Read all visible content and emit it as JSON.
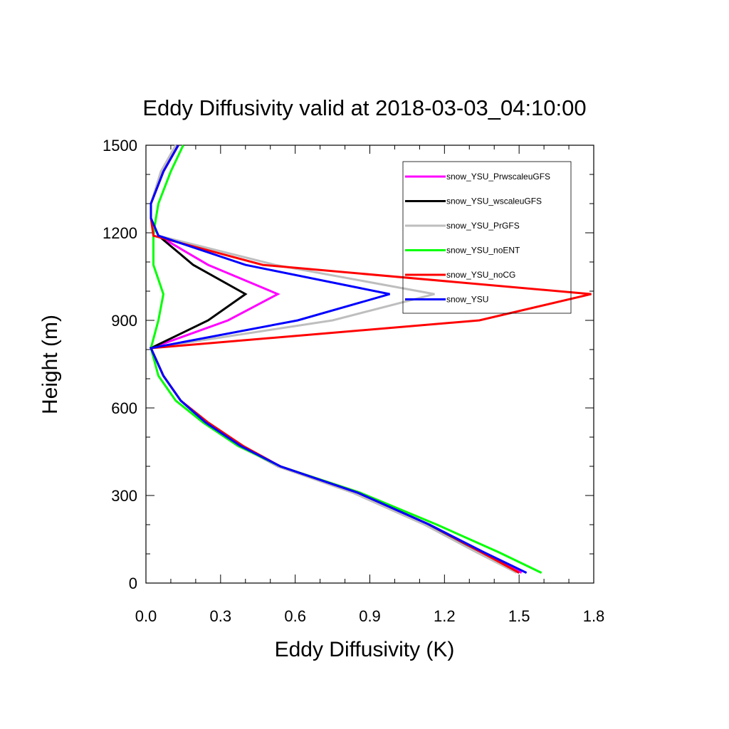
{
  "chart_data": {
    "type": "line",
    "title": "Eddy Diffusivity valid at 2018-03-03_04:10:00",
    "xlabel": "Eddy Diffusivity (K)",
    "ylabel": "Height (m)",
    "xlim": [
      0,
      1.8
    ],
    "ylim": [
      0,
      1500
    ],
    "x_ticks": [
      "0.0",
      "0.3",
      "0.6",
      "0.9",
      "1.2",
      "1.5",
      "1.8"
    ],
    "y_ticks": [
      "0",
      "300",
      "600",
      "900",
      "1200",
      "1500"
    ],
    "grid": false,
    "legend_position": "top-right",
    "series": [
      {
        "name": "snow_YSU_PrwscaleuGFS",
        "color": "#ff00ff",
        "points": [
          [
            1.51,
            35
          ],
          [
            1.35,
            105
          ],
          [
            1.13,
            200
          ],
          [
            0.84,
            310
          ],
          [
            0.53,
            400
          ],
          [
            0.38,
            470
          ],
          [
            0.24,
            550
          ],
          [
            0.14,
            625
          ],
          [
            0.07,
            710
          ],
          [
            0.02,
            805
          ],
          [
            0.33,
            900
          ],
          [
            0.53,
            990
          ],
          [
            0.25,
            1090
          ],
          [
            0.05,
            1190
          ],
          [
            0.02,
            1250
          ],
          [
            0.02,
            1300
          ],
          [
            0.07,
            1410
          ],
          [
            0.13,
            1500
          ]
        ]
      },
      {
        "name": "snow_YSU_wscaleuGFS",
        "color": "#000000",
        "points": [
          [
            1.5,
            35
          ],
          [
            1.35,
            105
          ],
          [
            1.13,
            200
          ],
          [
            0.84,
            310
          ],
          [
            0.53,
            400
          ],
          [
            0.38,
            470
          ],
          [
            0.24,
            550
          ],
          [
            0.14,
            625
          ],
          [
            0.07,
            710
          ],
          [
            0.02,
            805
          ],
          [
            0.25,
            900
          ],
          [
            0.4,
            990
          ],
          [
            0.19,
            1090
          ],
          [
            0.05,
            1190
          ],
          [
            0.02,
            1250
          ],
          [
            0.02,
            1300
          ],
          [
            0.07,
            1410
          ],
          [
            0.13,
            1500
          ]
        ]
      },
      {
        "name": "snow_YSU_PrGFS",
        "color": "#bebebe",
        "points": [
          [
            1.49,
            35
          ],
          [
            1.33,
            105
          ],
          [
            1.12,
            200
          ],
          [
            0.83,
            310
          ],
          [
            0.53,
            400
          ],
          [
            0.38,
            470
          ],
          [
            0.24,
            550
          ],
          [
            0.14,
            625
          ],
          [
            0.07,
            710
          ],
          [
            0.02,
            805
          ],
          [
            0.75,
            900
          ],
          [
            1.16,
            990
          ],
          [
            0.52,
            1090
          ],
          [
            0.05,
            1190
          ],
          [
            0.02,
            1250
          ],
          [
            0.02,
            1300
          ],
          [
            0.06,
            1410
          ],
          [
            0.12,
            1500
          ]
        ]
      },
      {
        "name": "snow_YSU_noENT",
        "color": "#00ff00",
        "points": [
          [
            1.59,
            35
          ],
          [
            1.42,
            105
          ],
          [
            1.17,
            200
          ],
          [
            0.86,
            310
          ],
          [
            0.54,
            400
          ],
          [
            0.37,
            470
          ],
          [
            0.23,
            550
          ],
          [
            0.12,
            625
          ],
          [
            0.05,
            710
          ],
          [
            0.02,
            805
          ],
          [
            0.05,
            900
          ],
          [
            0.07,
            990
          ],
          [
            0.03,
            1090
          ],
          [
            0.03,
            1190
          ],
          [
            0.04,
            1250
          ],
          [
            0.05,
            1300
          ],
          [
            0.1,
            1410
          ],
          [
            0.15,
            1500
          ]
        ]
      },
      {
        "name": "snow_YSU_noCG",
        "color": "#ff0000",
        "points": [
          [
            1.5,
            35
          ],
          [
            1.35,
            105
          ],
          [
            1.14,
            200
          ],
          [
            0.85,
            310
          ],
          [
            0.54,
            400
          ],
          [
            0.39,
            470
          ],
          [
            0.25,
            550
          ],
          [
            0.14,
            625
          ],
          [
            0.07,
            710
          ],
          [
            0.02,
            805
          ],
          [
            1.34,
            900
          ],
          [
            1.79,
            990
          ],
          [
            0.47,
            1090
          ],
          [
            0.03,
            1190
          ],
          [
            0.02,
            1250
          ],
          [
            0.02,
            1300
          ],
          [
            0.07,
            1410
          ],
          [
            0.13,
            1500
          ]
        ]
      },
      {
        "name": "snow_YSU",
        "color": "#0000ff",
        "points": [
          [
            1.53,
            35
          ],
          [
            1.36,
            105
          ],
          [
            1.14,
            200
          ],
          [
            0.85,
            310
          ],
          [
            0.54,
            400
          ],
          [
            0.38,
            470
          ],
          [
            0.24,
            550
          ],
          [
            0.14,
            625
          ],
          [
            0.07,
            710
          ],
          [
            0.02,
            805
          ],
          [
            0.61,
            900
          ],
          [
            0.98,
            990
          ],
          [
            0.4,
            1090
          ],
          [
            0.05,
            1190
          ],
          [
            0.02,
            1250
          ],
          [
            0.02,
            1300
          ],
          [
            0.07,
            1410
          ],
          [
            0.13,
            1500
          ]
        ]
      }
    ]
  }
}
